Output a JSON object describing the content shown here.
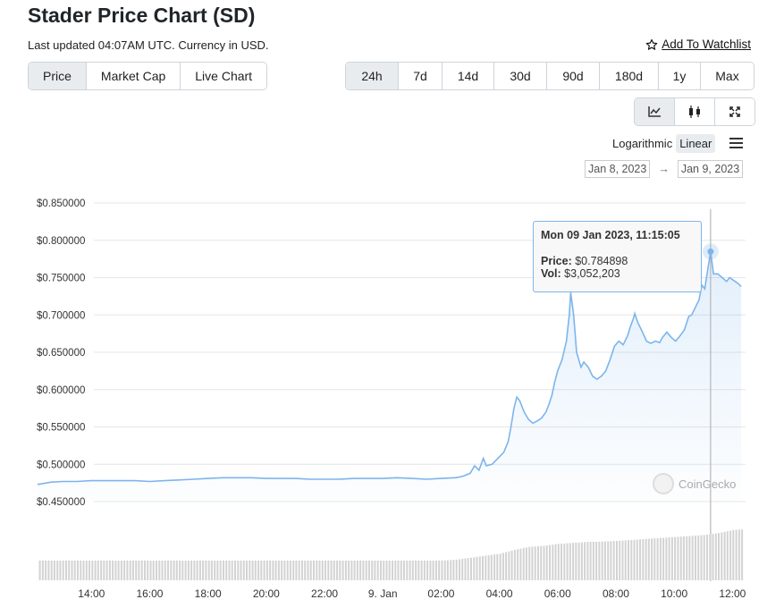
{
  "header": {
    "title": "Stader Price Chart (SD)",
    "updated": "Last updated 04:07AM UTC. Currency in USD.",
    "watchlist_label": "Add To Watchlist"
  },
  "metric_tabs": [
    {
      "label": "Price",
      "active": true
    },
    {
      "label": "Market Cap",
      "active": false
    },
    {
      "label": "Live Chart",
      "active": false
    }
  ],
  "range_tabs": [
    {
      "label": "24h",
      "active": true
    },
    {
      "label": "7d",
      "active": false
    },
    {
      "label": "14d",
      "active": false
    },
    {
      "label": "30d",
      "active": false
    },
    {
      "label": "90d",
      "active": false
    },
    {
      "label": "180d",
      "active": false
    },
    {
      "label": "1y",
      "active": false
    },
    {
      "label": "Max",
      "active": false
    }
  ],
  "chart_types": [
    {
      "icon": "line-chart-icon",
      "active": true
    },
    {
      "icon": "candlestick-icon",
      "active": false
    },
    {
      "icon": "expand-icon",
      "active": false
    }
  ],
  "scale": {
    "log_label": "Logarithmic",
    "linear_label": "Linear",
    "selected": "Linear"
  },
  "date_range": {
    "from": "Jan 8, 2023",
    "to": "Jan 9, 2023"
  },
  "tooltip": {
    "title": "Mon 09 Jan 2023, 11:15:05",
    "price_label": "Price:",
    "price_value": "$0.784898",
    "vol_label": "Vol:",
    "vol_value": "$3,052,203"
  },
  "watermark": "CoinGecko",
  "colors": {
    "line": "#7cb5ec",
    "volume": "#cccccc",
    "active_tab": "#e9ecef"
  },
  "chart_data": {
    "type": "area",
    "y_ticks": [
      "$0.850000",
      "$0.800000",
      "$0.750000",
      "$0.700000",
      "$0.650000",
      "$0.600000",
      "$0.550000",
      "$0.500000",
      "$0.450000"
    ],
    "ylim": [
      0.45,
      0.85
    ],
    "x_ticks": [
      {
        "label": "14:00",
        "hour": 14
      },
      {
        "label": "16:00",
        "hour": 16
      },
      {
        "label": "18:00",
        "hour": 18
      },
      {
        "label": "20:00",
        "hour": 20
      },
      {
        "label": "22:00",
        "hour": 22
      },
      {
        "label": "9. Jan",
        "hour": 24
      },
      {
        "label": "02:00",
        "hour": 26
      },
      {
        "label": "04:00",
        "hour": 28
      },
      {
        "label": "06:00",
        "hour": 30
      },
      {
        "label": "08:00",
        "hour": 32
      },
      {
        "label": "10:00",
        "hour": 34
      },
      {
        "label": "12:00",
        "hour": 36
      }
    ],
    "xlim": [
      12.15,
      36.45
    ],
    "price": [
      [
        12.15,
        0.473
      ],
      [
        12.6,
        0.476
      ],
      [
        13.0,
        0.477
      ],
      [
        13.5,
        0.477
      ],
      [
        14.0,
        0.478
      ],
      [
        14.5,
        0.478
      ],
      [
        15.0,
        0.478
      ],
      [
        15.5,
        0.478
      ],
      [
        16.0,
        0.477
      ],
      [
        16.5,
        0.478
      ],
      [
        17.0,
        0.479
      ],
      [
        17.5,
        0.48
      ],
      [
        18.0,
        0.481
      ],
      [
        18.5,
        0.482
      ],
      [
        19.0,
        0.482
      ],
      [
        19.5,
        0.482
      ],
      [
        20.0,
        0.481
      ],
      [
        20.5,
        0.481
      ],
      [
        21.0,
        0.481
      ],
      [
        21.5,
        0.48
      ],
      [
        22.0,
        0.48
      ],
      [
        22.5,
        0.48
      ],
      [
        23.0,
        0.481
      ],
      [
        23.5,
        0.481
      ],
      [
        24.0,
        0.481
      ],
      [
        24.5,
        0.482
      ],
      [
        25.0,
        0.481
      ],
      [
        25.5,
        0.48
      ],
      [
        26.0,
        0.481
      ],
      [
        26.5,
        0.482
      ],
      [
        26.75,
        0.484
      ],
      [
        27.0,
        0.488
      ],
      [
        27.15,
        0.498
      ],
      [
        27.3,
        0.492
      ],
      [
        27.45,
        0.508
      ],
      [
        27.55,
        0.498
      ],
      [
        27.75,
        0.5
      ],
      [
        28.0,
        0.51
      ],
      [
        28.15,
        0.516
      ],
      [
        28.3,
        0.53
      ],
      [
        28.4,
        0.55
      ],
      [
        28.5,
        0.575
      ],
      [
        28.6,
        0.59
      ],
      [
        28.7,
        0.585
      ],
      [
        28.85,
        0.57
      ],
      [
        29.0,
        0.56
      ],
      [
        29.15,
        0.555
      ],
      [
        29.3,
        0.558
      ],
      [
        29.45,
        0.562
      ],
      [
        29.6,
        0.57
      ],
      [
        29.7,
        0.58
      ],
      [
        29.8,
        0.592
      ],
      [
        29.9,
        0.61
      ],
      [
        30.0,
        0.625
      ],
      [
        30.15,
        0.64
      ],
      [
        30.3,
        0.665
      ],
      [
        30.4,
        0.7
      ],
      [
        30.45,
        0.73
      ],
      [
        30.55,
        0.7
      ],
      [
        30.65,
        0.65
      ],
      [
        30.8,
        0.63
      ],
      [
        30.9,
        0.637
      ],
      [
        31.05,
        0.63
      ],
      [
        31.2,
        0.618
      ],
      [
        31.35,
        0.614
      ],
      [
        31.5,
        0.618
      ],
      [
        31.65,
        0.625
      ],
      [
        31.8,
        0.64
      ],
      [
        31.95,
        0.658
      ],
      [
        32.1,
        0.665
      ],
      [
        32.25,
        0.66
      ],
      [
        32.4,
        0.672
      ],
      [
        32.5,
        0.685
      ],
      [
        32.6,
        0.695
      ],
      [
        32.65,
        0.702
      ],
      [
        32.75,
        0.69
      ],
      [
        32.9,
        0.678
      ],
      [
        33.05,
        0.665
      ],
      [
        33.2,
        0.662
      ],
      [
        33.35,
        0.665
      ],
      [
        33.5,
        0.663
      ],
      [
        33.6,
        0.67
      ],
      [
        33.75,
        0.677
      ],
      [
        33.9,
        0.67
      ],
      [
        34.05,
        0.665
      ],
      [
        34.2,
        0.672
      ],
      [
        34.35,
        0.68
      ],
      [
        34.5,
        0.698
      ],
      [
        34.6,
        0.7
      ],
      [
        34.75,
        0.712
      ],
      [
        34.85,
        0.72
      ],
      [
        34.95,
        0.74
      ],
      [
        35.05,
        0.735
      ],
      [
        35.15,
        0.76
      ],
      [
        35.25,
        0.785
      ],
      [
        35.35,
        0.755
      ],
      [
        35.5,
        0.755
      ],
      [
        35.65,
        0.75
      ],
      [
        35.8,
        0.745
      ],
      [
        35.9,
        0.75
      ],
      [
        36.05,
        0.746
      ],
      [
        36.2,
        0.742
      ],
      [
        36.3,
        0.738
      ]
    ],
    "highlight": {
      "hour": 35.25,
      "price": 0.784898,
      "volume": 3052203
    },
    "volume": [
      [
        12.2,
        1.0
      ],
      [
        13.0,
        1.0
      ],
      [
        14.0,
        1.0
      ],
      [
        15.0,
        1.0
      ],
      [
        16.0,
        1.0
      ],
      [
        17.0,
        1.0
      ],
      [
        18.0,
        1.0
      ],
      [
        19.0,
        1.0
      ],
      [
        20.0,
        1.0
      ],
      [
        21.0,
        1.0
      ],
      [
        22.0,
        1.0
      ],
      [
        23.0,
        1.0
      ],
      [
        24.0,
        1.0
      ],
      [
        25.0,
        1.0
      ],
      [
        26.0,
        1.0
      ],
      [
        26.5,
        1.05
      ],
      [
        27.0,
        1.15
      ],
      [
        27.5,
        1.25
      ],
      [
        28.0,
        1.35
      ],
      [
        28.5,
        1.55
      ],
      [
        29.0,
        1.7
      ],
      [
        29.5,
        1.75
      ],
      [
        30.0,
        1.85
      ],
      [
        30.5,
        1.9
      ],
      [
        31.0,
        1.95
      ],
      [
        31.5,
        1.97
      ],
      [
        32.0,
        2.0
      ],
      [
        32.5,
        2.05
      ],
      [
        33.0,
        2.1
      ],
      [
        33.5,
        2.15
      ],
      [
        34.0,
        2.2
      ],
      [
        34.5,
        2.25
      ],
      [
        35.0,
        2.3
      ],
      [
        35.5,
        2.4
      ],
      [
        36.0,
        2.55
      ],
      [
        36.4,
        2.6
      ]
    ]
  }
}
